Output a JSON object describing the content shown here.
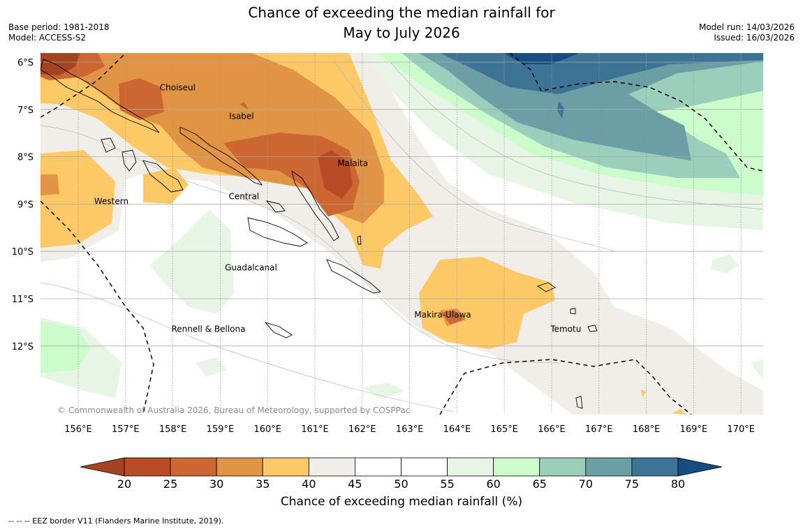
{
  "header": {
    "title_line1": "Chance of exceeding the median rainfall for",
    "title_line2": "May to July 2026",
    "base_period": "Base period: 1981-2018",
    "model": "Model: ACCESS-S2",
    "model_run": "Model run: 14/03/2026",
    "issued": "Issued: 16/03/2026"
  },
  "map": {
    "lat_labels": [
      "6°S",
      "7°S",
      "8°S",
      "9°S",
      "10°S",
      "11°S",
      "12°S"
    ],
    "lon_labels": [
      "156°E",
      "157°E",
      "158°E",
      "159°E",
      "160°E",
      "161°E",
      "162°E",
      "163°E",
      "164°E",
      "165°E",
      "166°E",
      "167°E",
      "168°E",
      "169°E",
      "170°E"
    ],
    "regions": [
      {
        "name": "Choiseul",
        "lon": 158.1,
        "lat": -6.6
      },
      {
        "name": "Isabel",
        "lon": 159.45,
        "lat": -7.2
      },
      {
        "name": "Malaita",
        "lon": 161.8,
        "lat": -8.2
      },
      {
        "name": "Western",
        "lon": 156.7,
        "lat": -9.0
      },
      {
        "name": "Central",
        "lon": 159.5,
        "lat": -8.9
      },
      {
        "name": "Guadalcanal",
        "lon": 159.65,
        "lat": -10.4
      },
      {
        "name": "Makira-Ulawa",
        "lon": 163.7,
        "lat": -11.4
      },
      {
        "name": "Temotu",
        "lon": 166.3,
        "lat": -11.7
      },
      {
        "name": "Rennell & Bellona",
        "lon": 158.75,
        "lat": -11.7
      }
    ],
    "copyright": "© Commonwealth of Australia 2026, Bureau of Meteorology, supported by COSPPac"
  },
  "legend": {
    "ticks": [
      "20",
      "25",
      "30",
      "35",
      "40",
      "45",
      "50",
      "55",
      "60",
      "65",
      "70",
      "75",
      "80"
    ],
    "colors": [
      "#a3431f",
      "#b84a26",
      "#cc6632",
      "#e09444",
      "#fcc966",
      "#f1ede8",
      "#ffffff",
      "#ffffff",
      "#e8f4e6",
      "#ccfccc",
      "#9ccfbb",
      "#6b9ea5",
      "#3d7496",
      "#154d82"
    ],
    "label": "Chance of exceeding median rainfall (%)"
  },
  "footnote": "--  --  -- EEZ border V11 (Flanders Marine Institute, 2019)."
}
